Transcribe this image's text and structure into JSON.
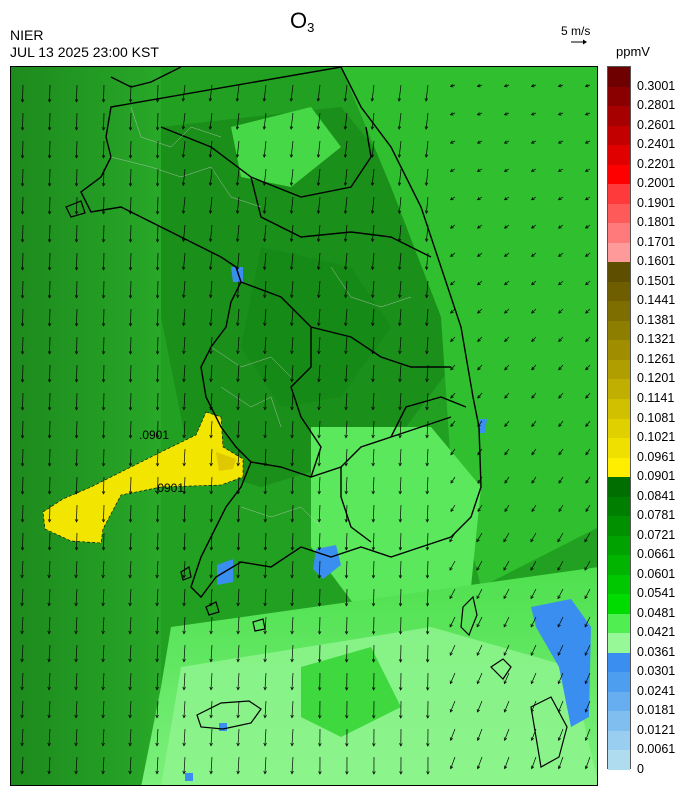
{
  "header": {
    "agency": "NIER",
    "timestamp": "JUL 13 2025 23:00 KST",
    "title_main": "O",
    "title_sub": "3",
    "wind_scale_label": "5 m/s",
    "unit": "ppmV"
  },
  "map": {
    "contour_labels": [
      ".0901",
      ".0901"
    ],
    "background_color": "#1f8f1f",
    "plume_color": "#f2e600",
    "land_boundary_color": "#000000",
    "admin_boundary_color": "#c8c8c8"
  },
  "legend": {
    "levels": [
      {
        "label": "0.3001",
        "color": "#6e0000"
      },
      {
        "label": "0.2801",
        "color": "#8a0000"
      },
      {
        "label": "0.2601",
        "color": "#a60000"
      },
      {
        "label": "0.2401",
        "color": "#c20000"
      },
      {
        "label": "0.2201",
        "color": "#e00000"
      },
      {
        "label": "0.2001",
        "color": "#ff0000"
      },
      {
        "label": "0.1901",
        "color": "#ff3a3a"
      },
      {
        "label": "0.1801",
        "color": "#ff5a5a"
      },
      {
        "label": "0.1701",
        "color": "#ff7a7a"
      },
      {
        "label": "0.1601",
        "color": "#ff9a9a"
      },
      {
        "label": "0.1501",
        "color": "#5e4e00"
      },
      {
        "label": "0.1441",
        "color": "#6e5e00"
      },
      {
        "label": "0.1381",
        "color": "#7e6e00"
      },
      {
        "label": "0.1321",
        "color": "#8e7e00"
      },
      {
        "label": "0.1261",
        "color": "#a08e00"
      },
      {
        "label": "0.1201",
        "color": "#b09e00"
      },
      {
        "label": "0.1141",
        "color": "#c0ae00"
      },
      {
        "label": "0.1081",
        "color": "#d0c000"
      },
      {
        "label": "0.1021",
        "color": "#e0d000"
      },
      {
        "label": "0.0961",
        "color": "#f0e000"
      },
      {
        "label": "0.0901",
        "color": "#ffee00"
      },
      {
        "label": "0.0841",
        "color": "#006e00"
      },
      {
        "label": "0.0781",
        "color": "#007e00"
      },
      {
        "label": "0.0721",
        "color": "#009000"
      },
      {
        "label": "0.0661",
        "color": "#00a200"
      },
      {
        "label": "0.0601",
        "color": "#00b400"
      },
      {
        "label": "0.0541",
        "color": "#00c800"
      },
      {
        "label": "0.0481",
        "color": "#00dc00"
      },
      {
        "label": "0.0421",
        "color": "#50ee50"
      },
      {
        "label": "0.0361",
        "color": "#96f896"
      },
      {
        "label": "0.0301",
        "color": "#3a8ef0"
      },
      {
        "label": "0.0241",
        "color": "#4e9ef0"
      },
      {
        "label": "0.0181",
        "color": "#66aef0"
      },
      {
        "label": "0.0121",
        "color": "#80bef0"
      },
      {
        "label": "0.0061",
        "color": "#9acef0"
      },
      {
        "label": "0",
        "color": "#b0dcf0"
      }
    ]
  }
}
